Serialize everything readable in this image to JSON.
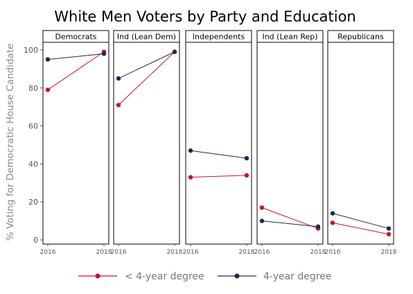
{
  "chart_data": {
    "type": "line",
    "title": "White Men Voters by Party and Education",
    "ylabel": "% Voting for Democratic House Candidate",
    "xlabel": "",
    "ylim": [
      0,
      100
    ],
    "yticks": [
      0,
      20,
      40,
      60,
      80,
      100
    ],
    "x": [
      "2016",
      "2018"
    ],
    "panels": [
      {
        "name": "Democrats",
        "series": [
          {
            "name": "< 4-year degree",
            "values": [
              79,
              99
            ]
          },
          {
            "name": "4-year degree",
            "values": [
              95,
              98
            ]
          }
        ]
      },
      {
        "name": "Ind (Lean Dem)",
        "series": [
          {
            "name": "< 4-year degree",
            "values": [
              71,
              99
            ]
          },
          {
            "name": "4-year degree",
            "values": [
              85,
              99
            ]
          }
        ]
      },
      {
        "name": "Independents",
        "series": [
          {
            "name": "< 4-year degree",
            "values": [
              33,
              34
            ]
          },
          {
            "name": "4-year degree",
            "values": [
              47,
              43
            ]
          }
        ]
      },
      {
        "name": "Ind (Lean Rep)",
        "series": [
          {
            "name": "< 4-year degree",
            "values": [
              17,
              6
            ]
          },
          {
            "name": "4-year degree",
            "values": [
              10,
              7
            ]
          }
        ]
      },
      {
        "name": "Republicans",
        "series": [
          {
            "name": "< 4-year degree",
            "values": [
              9,
              3
            ]
          },
          {
            "name": "4-year degree",
            "values": [
              14,
              6
            ]
          }
        ]
      }
    ],
    "legend": {
      "placement": "bottom",
      "entries": [
        {
          "name": "< 4-year degree",
          "color": "#c8102e"
        },
        {
          "name": "4-year degree",
          "color": "#1f2a4d"
        }
      ]
    }
  }
}
